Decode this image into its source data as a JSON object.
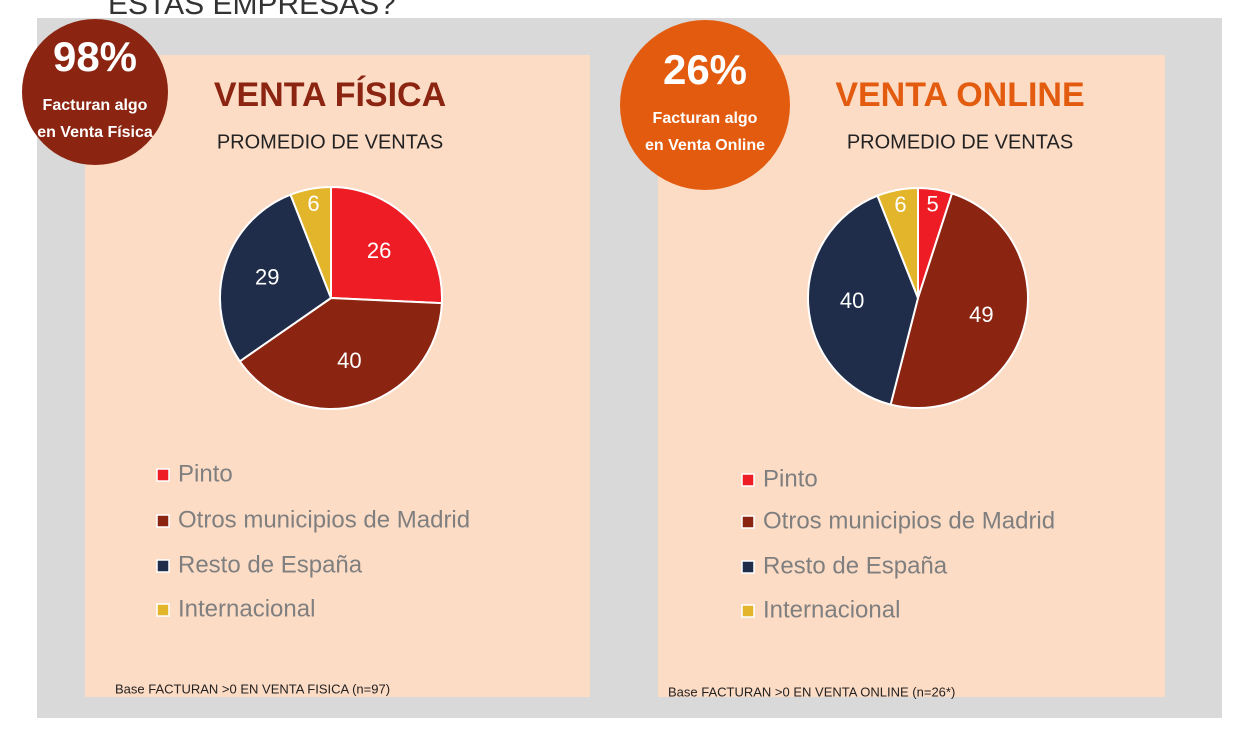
{
  "header": {
    "title": "ESTAS EMPRESAS?"
  },
  "chart_data": [
    {
      "type": "pie",
      "title": "VENTA FÍSICA",
      "subtitle": "PROMEDIO DE VENTAS",
      "categories": [
        "Pinto",
        "Otros municipios de Madrid",
        "Resto de España",
        "Internacional"
      ],
      "values": [
        26,
        40,
        29,
        6
      ],
      "colors": [
        "#ee1c25",
        "#8b2511",
        "#1f2d4a",
        "#e2b52b"
      ],
      "title_color": "#8b2511",
      "badge": {
        "value": 98,
        "label": "98%",
        "lines": [
          "Facturan  algo",
          "en Venta Física"
        ],
        "color": "#8b2511"
      },
      "note": "Base FACTURAN >0 EN VENTA FISICA (n=97)"
    },
    {
      "type": "pie",
      "title": "VENTA ONLINE",
      "subtitle": "PROMEDIO DE VENTAS",
      "categories": [
        "Pinto",
        "Otros municipios de Madrid",
        "Resto de España",
        "Internacional"
      ],
      "values": [
        5,
        49,
        40,
        6
      ],
      "colors": [
        "#ee1c25",
        "#8b2511",
        "#1f2d4a",
        "#e2b52b"
      ],
      "title_color": "#e35b0e",
      "badge": {
        "value": 26,
        "label": "26%",
        "lines": [
          "Facturan  algo",
          "en Venta Online"
        ],
        "color": "#e35b0e"
      },
      "note": "Base FACTURAN >0 EN VENTA ONLINE (n=26*)"
    }
  ]
}
